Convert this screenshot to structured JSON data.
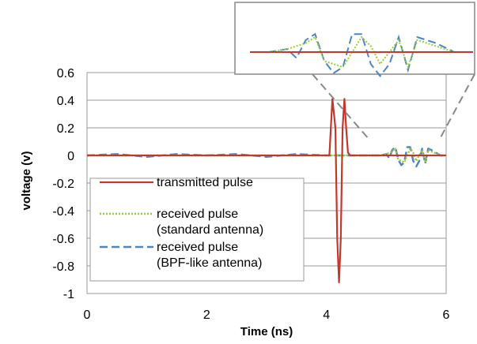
{
  "chart_data": {
    "type": "line",
    "xlabel": "Time (ns)",
    "ylabel": "voltage  (v)",
    "xlim": [
      0,
      6
    ],
    "ylim": [
      -1,
      0.6
    ],
    "x_ticks": [
      "0",
      "2",
      "4",
      "6"
    ],
    "y_ticks": [
      "0.6",
      "0.4",
      "0.2",
      "0",
      "-0.2",
      "-0.4",
      "-0.6",
      "-0.8",
      "-1"
    ],
    "grid": "horizontal",
    "legend_position": "bottom-left",
    "inset": "zoomed view of received pulses, x about 4.8 to 6 ns",
    "series": [
      {
        "name": "transmitted pulse",
        "color": "#c0392b",
        "style": "solid",
        "x": [
          0,
          4.05,
          4.1,
          4.15,
          4.18,
          4.21,
          4.24,
          4.27,
          4.3,
          4.33,
          4.36,
          4.4,
          6
        ],
        "y": [
          0,
          0,
          0.41,
          0.2,
          -0.6,
          -0.92,
          -0.6,
          0.2,
          0.41,
          0.2,
          0.02,
          0,
          0
        ]
      },
      {
        "name": "received pulse\n(standard antenna)",
        "color": "#9acd32",
        "style": "dotted",
        "x": [
          0,
          4.9,
          5.0,
          5.1,
          5.15,
          5.2,
          5.3,
          5.4,
          5.45,
          5.5,
          5.6,
          5.65,
          5.7,
          5.8,
          5.9,
          6
        ],
        "y": [
          0,
          0,
          0.01,
          0.03,
          0.05,
          -0.03,
          -0.05,
          0.05,
          0.02,
          -0.04,
          0.04,
          -0.05,
          0.04,
          0.02,
          0,
          0
        ]
      },
      {
        "name": "received pulse\n(BPF-like antenna)",
        "color": "#4a86c5",
        "style": "dashed",
        "x": [
          0,
          0.5,
          1.0,
          1.5,
          2.0,
          2.5,
          3.0,
          3.5,
          4.0,
          4.9,
          5.0,
          5.05,
          5.1,
          5.15,
          5.2,
          5.25,
          5.3,
          5.35,
          5.4,
          5.45,
          5.5,
          5.55,
          5.6,
          5.65,
          5.7,
          5.8,
          5.9,
          6
        ],
        "y": [
          0,
          0.01,
          -0.01,
          0.01,
          0,
          0.01,
          -0.01,
          0.01,
          0,
          0,
          0.01,
          -0.02,
          0.04,
          0.06,
          -0.03,
          -0.07,
          -0.05,
          0.06,
          0.06,
          -0.04,
          -0.08,
          -0.04,
          0.05,
          -0.06,
          0.05,
          0.03,
          0,
          0
        ]
      }
    ]
  }
}
